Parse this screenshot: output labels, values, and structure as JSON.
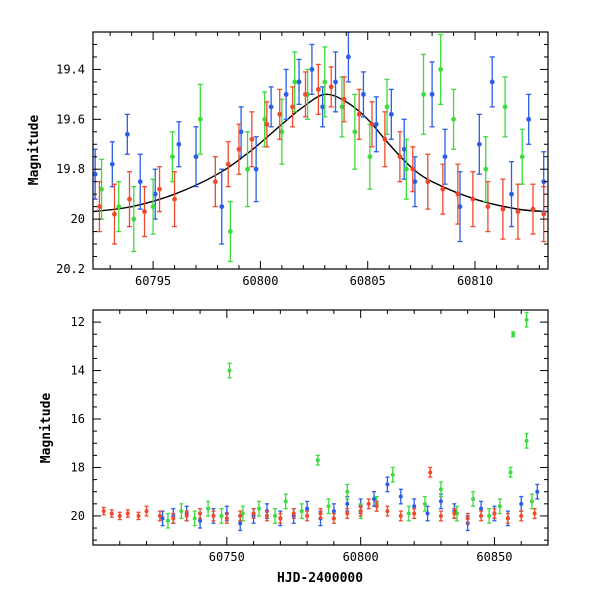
{
  "chart_data": [
    {
      "type": "scatter",
      "panel": "top",
      "title": "",
      "xlabel": "",
      "ylabel": "Magnitude",
      "xlim": [
        60792.2,
        60813.4
      ],
      "ylim": [
        20.2,
        19.25
      ],
      "y_inverted": true,
      "xticks_major": [
        60795,
        60800,
        60805,
        60810
      ],
      "xtick_labels": [
        "60795",
        "60800",
        "60805",
        "60810"
      ],
      "yticks_major": [
        19.4,
        19.6,
        19.8,
        20,
        20.2
      ],
      "ytick_labels": [
        "19.4",
        "19.6",
        "19.8",
        "20",
        "20.2"
      ],
      "grid": false,
      "legend": "none",
      "model_curve": {
        "color": "#000000",
        "points": [
          [
            60792.2,
            19.97
          ],
          [
            60794.0,
            19.95
          ],
          [
            60796.0,
            19.9
          ],
          [
            60798.0,
            19.82
          ],
          [
            60799.5,
            19.73
          ],
          [
            60801.0,
            19.62
          ],
          [
            60802.0,
            19.55
          ],
          [
            60803.0,
            19.5
          ],
          [
            60804.0,
            19.53
          ],
          [
            60805.0,
            19.6
          ],
          [
            60806.0,
            19.7
          ],
          [
            60807.0,
            19.79
          ],
          [
            60808.0,
            19.85
          ],
          [
            60810.0,
            19.92
          ],
          [
            60812.0,
            19.96
          ],
          [
            60813.4,
            19.97
          ]
        ]
      },
      "series": [
        {
          "color": "#2a5ee8",
          "points": [
            [
              60792.3,
              19.82,
              0.1
            ],
            [
              60793.1,
              19.78,
              0.09
            ],
            [
              60793.8,
              19.66,
              0.08
            ],
            [
              60794.4,
              19.85,
              0.11
            ],
            [
              60795.1,
              19.9,
              0.1
            ],
            [
              60796.2,
              19.7,
              0.09
            ],
            [
              60797.0,
              19.75,
              0.12
            ],
            [
              60798.2,
              19.95,
              0.15
            ],
            [
              60799.1,
              19.65,
              0.1
            ],
            [
              60799.8,
              19.8,
              0.13
            ],
            [
              60800.5,
              19.55,
              0.08
            ],
            [
              60801.2,
              19.5,
              0.1
            ],
            [
              60801.8,
              19.45,
              0.09
            ],
            [
              60802.4,
              19.4,
              0.1
            ],
            [
              60802.9,
              19.55,
              0.08
            ],
            [
              60803.5,
              19.45,
              0.12
            ],
            [
              60804.1,
              19.35,
              0.1
            ],
            [
              60804.8,
              19.5,
              0.09
            ],
            [
              60805.4,
              19.62,
              0.11
            ],
            [
              60806.1,
              19.58,
              0.1
            ],
            [
              60806.7,
              19.72,
              0.12
            ],
            [
              60807.2,
              19.85,
              0.1
            ],
            [
              60808.0,
              19.5,
              0.13
            ],
            [
              60808.6,
              19.75,
              0.11
            ],
            [
              60809.3,
              19.95,
              0.14
            ],
            [
              60810.2,
              19.7,
              0.12
            ],
            [
              60810.8,
              19.45,
              0.1
            ],
            [
              60811.7,
              19.9,
              0.13
            ],
            [
              60812.5,
              19.6,
              0.1
            ],
            [
              60813.2,
              19.85,
              0.12
            ]
          ]
        },
        {
          "color": "#3cdc3c",
          "points": [
            [
              60792.6,
              19.88,
              0.12
            ],
            [
              60793.4,
              19.95,
              0.1
            ],
            [
              60794.1,
              20.0,
              0.13
            ],
            [
              60795.0,
              19.95,
              0.11
            ],
            [
              60795.9,
              19.75,
              0.1
            ],
            [
              60797.2,
              19.6,
              0.14
            ],
            [
              60798.6,
              20.05,
              0.12
            ],
            [
              60799.4,
              19.8,
              0.15
            ],
            [
              60800.2,
              19.6,
              0.11
            ],
            [
              60801.0,
              19.65,
              0.13
            ],
            [
              60801.6,
              19.45,
              0.12
            ],
            [
              60802.2,
              19.5,
              0.1
            ],
            [
              60803.0,
              19.45,
              0.14
            ],
            [
              60803.8,
              19.55,
              0.12
            ],
            [
              60804.4,
              19.65,
              0.15
            ],
            [
              60805.1,
              19.75,
              0.13
            ],
            [
              60805.9,
              19.55,
              0.11
            ],
            [
              60806.8,
              19.8,
              0.12
            ],
            [
              60807.6,
              19.5,
              0.16
            ],
            [
              60808.4,
              19.4,
              0.14
            ],
            [
              60809.0,
              19.6,
              0.12
            ],
            [
              60810.5,
              19.8,
              0.13
            ],
            [
              60811.4,
              19.55,
              0.12
            ],
            [
              60812.2,
              19.75,
              0.11
            ]
          ]
        },
        {
          "color": "#f04a2c",
          "points": [
            [
              60792.5,
              19.95,
              0.1
            ],
            [
              60793.2,
              19.98,
              0.12
            ],
            [
              60793.9,
              19.92,
              0.11
            ],
            [
              60794.6,
              19.97,
              0.1
            ],
            [
              60795.3,
              19.88,
              0.09
            ],
            [
              60796.0,
              19.92,
              0.11
            ],
            [
              60797.9,
              19.85,
              0.1
            ],
            [
              60798.5,
              19.78,
              0.09
            ],
            [
              60799.0,
              19.72,
              0.1
            ],
            [
              60799.6,
              19.68,
              0.11
            ],
            [
              60800.3,
              19.62,
              0.09
            ],
            [
              60800.9,
              19.58,
              0.1
            ],
            [
              60801.5,
              19.55,
              0.08
            ],
            [
              60802.1,
              19.5,
              0.09
            ],
            [
              60802.7,
              19.48,
              0.1
            ],
            [
              60803.3,
              19.47,
              0.08
            ],
            [
              60803.9,
              19.52,
              0.09
            ],
            [
              60804.6,
              19.58,
              0.1
            ],
            [
              60805.2,
              19.62,
              0.09
            ],
            [
              60805.8,
              19.68,
              0.11
            ],
            [
              60806.5,
              19.75,
              0.1
            ],
            [
              60807.1,
              19.8,
              0.09
            ],
            [
              60807.8,
              19.85,
              0.11
            ],
            [
              60808.5,
              19.88,
              0.1
            ],
            [
              60809.2,
              19.9,
              0.12
            ],
            [
              60809.9,
              19.92,
              0.11
            ],
            [
              60810.6,
              19.95,
              0.1
            ],
            [
              60811.3,
              19.96,
              0.12
            ],
            [
              60812.0,
              19.97,
              0.11
            ],
            [
              60812.7,
              19.96,
              0.1
            ],
            [
              60813.2,
              19.98,
              0.11
            ]
          ]
        }
      ]
    },
    {
      "type": "scatter",
      "panel": "bottom",
      "title": "",
      "xlabel": "HJD-2400000",
      "ylabel": "Magnitude",
      "xlim": [
        60700,
        60870
      ],
      "ylim": [
        21.2,
        11.5
      ],
      "y_inverted": true,
      "xticks_major": [
        60750,
        60800,
        60850
      ],
      "xtick_labels": [
        "60750",
        "60800",
        "60850"
      ],
      "yticks_major": [
        12,
        14,
        16,
        18,
        20
      ],
      "ytick_labels": [
        "12",
        "14",
        "16",
        "18",
        "20"
      ],
      "grid": false,
      "legend": "none",
      "series": [
        {
          "color": "#2a5ee8",
          "points": [
            [
              60726,
              20.1,
              0.3
            ],
            [
              60730,
              20.0,
              0.3
            ],
            [
              60735,
              19.9,
              0.3
            ],
            [
              60740,
              20.2,
              0.3
            ],
            [
              60745,
              20.0,
              0.3
            ],
            [
              60750,
              19.9,
              0.3
            ],
            [
              60755,
              20.3,
              0.3
            ],
            [
              60760,
              20.0,
              0.3
            ],
            [
              60765,
              19.8,
              0.3
            ],
            [
              60770,
              20.1,
              0.3
            ],
            [
              60775,
              20.0,
              0.3
            ],
            [
              60780,
              19.7,
              0.3
            ],
            [
              60785,
              20.1,
              0.3
            ],
            [
              60790,
              19.8,
              0.3
            ],
            [
              60795,
              19.5,
              0.3
            ],
            [
              60800,
              19.6,
              0.3
            ],
            [
              60805,
              19.3,
              0.3
            ],
            [
              60810,
              18.7,
              0.3
            ],
            [
              60815,
              19.2,
              0.3
            ],
            [
              60820,
              19.6,
              0.3
            ],
            [
              60825,
              19.9,
              0.3
            ],
            [
              60830,
              19.4,
              0.3
            ],
            [
              60835,
              19.8,
              0.3
            ],
            [
              60840,
              20.3,
              0.3
            ],
            [
              60845,
              19.7,
              0.3
            ],
            [
              60850,
              19.9,
              0.3
            ],
            [
              60855,
              20.1,
              0.3
            ],
            [
              60860,
              19.5,
              0.3
            ],
            [
              60866,
              19.0,
              0.3
            ]
          ]
        },
        {
          "color": "#3cdc3c",
          "points": [
            [
              60728,
              20.2,
              0.3
            ],
            [
              60733,
              19.8,
              0.3
            ],
            [
              60738,
              20.1,
              0.3
            ],
            [
              60743,
              19.7,
              0.3
            ],
            [
              60748,
              20.0,
              0.3
            ],
            [
              60751,
              14.0,
              0.3
            ],
            [
              60756,
              19.9,
              0.3
            ],
            [
              60762,
              19.7,
              0.3
            ],
            [
              60768,
              20.0,
              0.3
            ],
            [
              60772,
              19.4,
              0.3
            ],
            [
              60778,
              19.8,
              0.3
            ],
            [
              60784,
              17.7,
              0.2
            ],
            [
              60788,
              19.6,
              0.3
            ],
            [
              60795,
              19.0,
              0.3
            ],
            [
              60800,
              19.8,
              0.3
            ],
            [
              60806,
              19.5,
              0.3
            ],
            [
              60812,
              18.3,
              0.3
            ],
            [
              60818,
              19.9,
              0.3
            ],
            [
              60824,
              19.5,
              0.3
            ],
            [
              60830,
              18.9,
              0.3
            ],
            [
              60836,
              19.9,
              0.3
            ],
            [
              60842,
              19.3,
              0.3
            ],
            [
              60848,
              20.0,
              0.3
            ],
            [
              60852,
              19.6,
              0.3
            ],
            [
              60856,
              18.2,
              0.2
            ],
            [
              60857,
              12.5,
              0.1
            ],
            [
              60862,
              11.9,
              0.3
            ],
            [
              60862,
              16.9,
              0.3
            ],
            [
              60864,
              19.4,
              0.3
            ]
          ]
        },
        {
          "color": "#f04a2c",
          "points": [
            [
              60704,
              19.8,
              0.15
            ],
            [
              60707,
              19.9,
              0.15
            ],
            [
              60710,
              20.0,
              0.15
            ],
            [
              60713,
              19.9,
              0.15
            ],
            [
              60717,
              20.0,
              0.15
            ],
            [
              60720,
              19.8,
              0.2
            ],
            [
              60725,
              20.0,
              0.2
            ],
            [
              60730,
              20.1,
              0.2
            ],
            [
              60735,
              20.0,
              0.2
            ],
            [
              60740,
              19.9,
              0.2
            ],
            [
              60745,
              20.0,
              0.2
            ],
            [
              60750,
              20.1,
              0.2
            ],
            [
              60755,
              20.0,
              0.2
            ],
            [
              60760,
              19.9,
              0.2
            ],
            [
              60765,
              20.0,
              0.2
            ],
            [
              60770,
              20.1,
              0.2
            ],
            [
              60775,
              19.9,
              0.2
            ],
            [
              60780,
              20.0,
              0.2
            ],
            [
              60785,
              19.9,
              0.2
            ],
            [
              60790,
              20.1,
              0.2
            ],
            [
              60795,
              19.9,
              0.2
            ],
            [
              60800,
              19.8,
              0.2
            ],
            [
              60803,
              19.5,
              0.2
            ],
            [
              60806,
              19.6,
              0.2
            ],
            [
              60810,
              19.8,
              0.2
            ],
            [
              60815,
              20.0,
              0.2
            ],
            [
              60820,
              19.9,
              0.2
            ],
            [
              60826,
              18.2,
              0.2
            ],
            [
              60830,
              20.0,
              0.2
            ],
            [
              60835,
              19.9,
              0.2
            ],
            [
              60840,
              20.1,
              0.2
            ],
            [
              60845,
              20.0,
              0.2
            ],
            [
              60850,
              19.9,
              0.2
            ],
            [
              60855,
              20.1,
              0.2
            ],
            [
              60860,
              20.0,
              0.2
            ],
            [
              60865,
              19.9,
              0.2
            ]
          ]
        }
      ]
    }
  ]
}
